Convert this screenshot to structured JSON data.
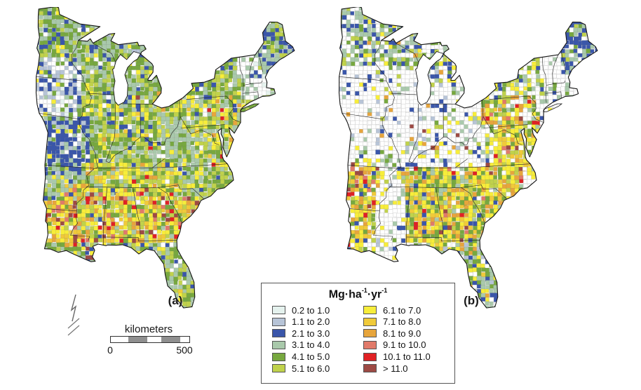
{
  "figure": {
    "background": "#ffffff"
  },
  "maps": [
    {
      "id": "a",
      "label": "(a)",
      "zones": [
        {
          "b": null,
          "w": {
            "4": 4,
            "3": 3,
            "5": 2,
            "6": 1.2,
            "2": 0.4,
            "12": 0.4
          }
        },
        {
          "b": [
            -98,
            44.3,
            -84,
            49.6
          ],
          "w": {
            "4": 4,
            "3": 3.5,
            "5": 1.5,
            "2": 1,
            "6": 0.6,
            "12": 0.5,
            "1": 0.3
          }
        },
        {
          "b": [
            -98,
            40.5,
            -91.5,
            44.8
          ],
          "w": {
            "12": 3.5,
            "1": 2.5,
            "2": 2,
            "0": 0.8,
            "3": 1,
            "4": 0.8,
            "6": 0.4,
            "5": 0.4
          }
        },
        {
          "b": [
            -95.5,
            35.8,
            -90.2,
            40.6
          ],
          "w": {
            "2": 5.5,
            "3": 2,
            "1": 1,
            "12": 1,
            "4": 0.8,
            "6": 0.5,
            "5": 0.4
          }
        },
        {
          "b": [
            -89.5,
            38,
            -80.5,
            42.6
          ],
          "w": {
            "4": 3.5,
            "3": 2.5,
            "5": 2,
            "6": 1.5,
            "2": 0.8,
            "12": 0.5,
            "8": 0.4,
            "7": 0.3,
            "11": 0.25,
            "10": 0.2
          }
        },
        {
          "b": [
            -80.5,
            36.5,
            -74,
            42.2
          ],
          "w": {
            "3": 3,
            "4": 2.5,
            "5": 2,
            "6": 2,
            "7": 0.5,
            "8": 0.5,
            "10": 0.3,
            "2": 0.3,
            "12": 0.3
          }
        },
        {
          "b": [
            -82.5,
            37.3,
            -79,
            40.7
          ],
          "w": {
            "3": 4.5,
            "4": 2,
            "5": 1,
            "6": 0.6,
            "12": 0.3
          }
        },
        {
          "b": [
            -80,
            41.9,
            -73.3,
            45.2
          ],
          "w": {
            "4": 3,
            "5": 2.5,
            "3": 2,
            "6": 1,
            "2": 0.5,
            "12": 0.4
          }
        },
        {
          "b": [
            -73.7,
            41.5,
            -70.5,
            45.3
          ],
          "w": {
            "12": 5,
            "3": 1.5,
            "0": 0.7,
            "4": 0.5,
            "2": 0.3
          }
        },
        {
          "b": [
            -71.3,
            43.3,
            -66.8,
            47.7
          ],
          "w": {
            "2": 3.5,
            "3": 2.5,
            "4": 1.5,
            "5": 0.8,
            "12": 0.5
          }
        },
        {
          "b": [
            -90.5,
            34.8,
            -81.3,
            36.9
          ],
          "w": {
            "6": 3,
            "5": 2.5,
            "4": 2,
            "3": 1.5,
            "7": 0.8,
            "8": 0.5,
            "2": 0.4,
            "10": 0.25,
            "12": 0.3
          }
        },
        {
          "b": [
            -92.5,
            30.5,
            -80.8,
            35.1
          ],
          "w": {
            "6": 3.5,
            "7": 2,
            "5": 1.8,
            "4": 1.5,
            "8": 1.2,
            "3": 0.8,
            "10": 0.5,
            "9": 0.5,
            "11": 0.45,
            "2": 0.35,
            "12": 0.3
          }
        },
        {
          "b": [
            -82.6,
            31.6,
            -78.6,
            34.3
          ],
          "w": {
            "6": 3,
            "7": 2,
            "8": 1.2,
            "11": 0.7,
            "10": 0.6,
            "4": 1,
            "5": 1,
            "3": 0.6,
            "9": 0.4
          }
        },
        {
          "b": [
            -94.4,
            30.2,
            -91,
            33.6
          ],
          "w": {
            "6": 2.5,
            "7": 1.8,
            "10": 1.4,
            "11": 1.3,
            "9": 1,
            "8": 1.1,
            "4": 0.8,
            "5": 0.6,
            "12": 0.3
          }
        },
        {
          "b": [
            -90.6,
            28.8,
            -88.9,
            30.3
          ],
          "w": {
            "2": 2.5,
            "6": 1,
            "4": 1,
            "11": 0.5,
            "3": 0.7
          }
        },
        {
          "b": [
            -87.8,
            24.8,
            -79.8,
            30.7
          ],
          "w": {
            "4": 2.5,
            "3": 2.5,
            "5": 1.5,
            "6": 0.9,
            "2": 0.6,
            "12": 0.6,
            "7": 0.35
          }
        }
      ]
    },
    {
      "id": "b",
      "label": "(b)",
      "zones": [
        {
          "b": null,
          "w": {
            "12": 6,
            "3": 1,
            "6": 0.8,
            "4": 0.8,
            "2": 0.4
          }
        },
        {
          "b": [
            -98,
            44.3,
            -84,
            49.6
          ],
          "w": {
            "3": 3.5,
            "12": 2.6,
            "2": 1.8,
            "4": 1.2,
            "5": 0.8,
            "6": 0.5,
            "8": 0.25
          }
        },
        {
          "b": [
            -98,
            38,
            -84.5,
            44.5
          ],
          "w": {
            "12": 10,
            "1": 0.6,
            "3": 0.5,
            "2": 0.5,
            "6": 0.35,
            "4": 0.3,
            "8": 0.2,
            "5": 0.2
          }
        },
        {
          "b": [
            -89.2,
            36.5,
            -80.3,
            40.2
          ],
          "w": {
            "12": 7,
            "1": 1,
            "2": 0.8,
            "6": 0.7,
            "3": 0.6,
            "5": 0.4,
            "11": 0.25,
            "8": 0.3
          }
        },
        {
          "b": [
            -90.5,
            34.8,
            -81.3,
            36.7
          ],
          "w": {
            "12": 4,
            "6": 1.2,
            "5": 0.8,
            "3": 0.8,
            "1": 0.6,
            "2": 0.45,
            "8": 0.3,
            "7": 0.4
          }
        },
        {
          "b": [
            -80,
            41.9,
            -73.3,
            45.2
          ],
          "w": {
            "4": 2.5,
            "12": 2.6,
            "5": 1.5,
            "6": 1.2,
            "3": 1,
            "2": 0.5,
            "0": 0.3
          }
        },
        {
          "b": [
            -73.7,
            41.5,
            -70.5,
            45.3
          ],
          "w": {
            "12": 6,
            "3": 1,
            "4": 0.4,
            "2": 0.3
          }
        },
        {
          "b": [
            -71.3,
            43.3,
            -66.8,
            47.7
          ],
          "w": {
            "2": 4.5,
            "3": 1.8,
            "4": 1.2,
            "12": 1,
            "5": 0.5
          }
        },
        {
          "b": [
            -80.6,
            39.6,
            -74.6,
            42.1
          ],
          "w": {
            "8": 2,
            "6": 1.8,
            "4": 1.8,
            "12": 1.6,
            "5": 1,
            "3": 1,
            "10": 0.5,
            "11": 0.35,
            "9": 0.35,
            "7": 0.5
          }
        },
        {
          "b": [
            -79.8,
            36.4,
            -74.8,
            39.7
          ],
          "w": {
            "6": 2.5,
            "7": 1.8,
            "5": 1.5,
            "4": 1.2,
            "12": 1.2,
            "8": 0.8,
            "3": 0.7,
            "9": 0.35,
            "10": 0.25,
            "11": 0.2
          }
        },
        {
          "b": [
            -88.6,
            30.5,
            -76.8,
            36.6
          ],
          "w": {
            "6": 2.8,
            "4": 2.2,
            "7": 1.8,
            "5": 1.8,
            "8": 1.3,
            "3": 1,
            "12": 0.8,
            "10": 0.35,
            "9": 0.35,
            "2": 0.5,
            "11": 0.25
          }
        },
        {
          "b": [
            -94.6,
            32.7,
            -90.4,
            36.6
          ],
          "w": {
            "6": 2.2,
            "7": 1.8,
            "8": 1.5,
            "11": 1.1,
            "10": 0.7,
            "9": 0.8,
            "4": 1,
            "12": 1.2,
            "5": 0.6,
            "2": 0.3
          }
        },
        {
          "b": [
            -94.4,
            29.4,
            -90.7,
            33.1
          ],
          "w": {
            "6": 1.8,
            "4": 1.6,
            "7": 1.2,
            "8": 0.8,
            "12": 1.3,
            "10": 0.35,
            "2": 0.5,
            "5": 0.8,
            "9": 0.3
          }
        },
        {
          "b": [
            -91.4,
            29.4,
            -89.6,
            36.6
          ],
          "w": {
            "12": 5,
            "6": 0.8,
            "3": 0.5,
            "1": 0.4,
            "5": 0.3
          }
        },
        {
          "b": [
            -87.8,
            24.8,
            -79.8,
            30.7
          ],
          "w": {
            "3": 2.8,
            "4": 1.5,
            "12": 1.6,
            "6": 0.8,
            "7": 0.8,
            "2": 0.7,
            "1": 0.6,
            "8": 0.25
          }
        }
      ]
    }
  ],
  "legend": {
    "title_segments": [
      {
        "text": "Mg·ha"
      },
      {
        "sup": "-1"
      },
      {
        "text": "·yr"
      },
      {
        "sup": "-1"
      }
    ],
    "classes": [
      {
        "label": "0.2 to 1.0",
        "color": "#e5f2ee"
      },
      {
        "label": "1.1 to 2.0",
        "color": "#b7c4d7"
      },
      {
        "label": "2.1 to 3.0",
        "color": "#3a56aa"
      },
      {
        "label": "3.1 to 4.0",
        "color": "#a9c9ab"
      },
      {
        "label": "4.1 to 5.0",
        "color": "#77a83f"
      },
      {
        "label": "5.1 to 6.0",
        "color": "#c0d24b"
      },
      {
        "label": "6.1 to 7.0",
        "color": "#f7ed3a"
      },
      {
        "label": "7.1 to 8.0",
        "color": "#f0ca3a"
      },
      {
        "label": "8.1 to 9.0",
        "color": "#e7a53c"
      },
      {
        "label": "9.1 to 10.0",
        "color": "#e17a6a"
      },
      {
        "label": "10.1 to 11.0",
        "color": "#e02124"
      },
      {
        "label": "> 11.0",
        "color": "#9d4a44"
      }
    ]
  },
  "scale_bar": {
    "title": "kilometers",
    "start_label": "0",
    "end_label": "500"
  },
  "colors": {
    "no_data": "#ffffff",
    "coastline": "#151515",
    "state_line": "#222222",
    "county_line_light": "#cfcfcf",
    "scale_bar_gray": "#8f8f8f"
  }
}
